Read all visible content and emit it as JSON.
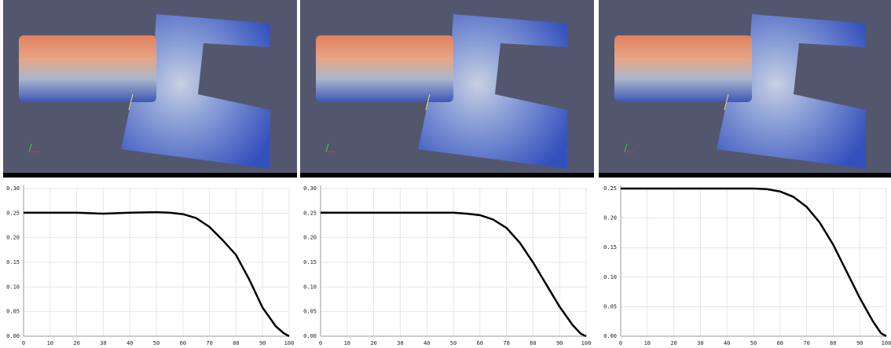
{
  "chart_data": [
    {
      "type": "line",
      "xlim": [
        0,
        100
      ],
      "xticks": [
        0,
        10,
        20,
        30,
        40,
        50,
        60,
        70,
        80,
        90,
        100
      ],
      "ylim": [
        0,
        0.3
      ],
      "yticks": [
        {
          "value": 0,
          "label": "0.00"
        },
        0.05,
        {
          "value": 0.1,
          "label": "0.10"
        },
        0.15,
        {
          "value": 0.2,
          "label": "0.20"
        },
        0.25,
        {
          "value": 0.3,
          "label": "0.30"
        }
      ],
      "grid": true,
      "x": [
        0,
        10,
        20,
        30,
        40,
        50,
        55,
        60,
        65,
        70,
        75,
        80,
        85,
        90,
        95,
        98,
        100
      ],
      "series": [
        {
          "color": "#000000",
          "values": [
            0.251,
            0.251,
            0.251,
            0.249,
            0.251,
            0.252,
            0.251,
            0.248,
            0.24,
            0.222,
            0.195,
            0.165,
            0.115,
            0.058,
            0.02,
            0.006,
            0
          ]
        }
      ]
    },
    {
      "type": "line",
      "xlim": [
        0,
        100
      ],
      "xticks": [
        0,
        10,
        20,
        30,
        40,
        50,
        60,
        70,
        80,
        90,
        100
      ],
      "ylim": [
        0,
        0.3
      ],
      "yticks": [
        {
          "value": 0,
          "label": "0.00"
        },
        0.05,
        {
          "value": 0.1,
          "label": "0.10"
        },
        0.15,
        {
          "value": 0.2,
          "label": "0.20"
        },
        0.25,
        {
          "value": 0.3,
          "label": "0.30"
        }
      ],
      "grid": true,
      "x": [
        0,
        10,
        20,
        30,
        40,
        50,
        55,
        60,
        65,
        70,
        75,
        80,
        85,
        90,
        95,
        98,
        100
      ],
      "series": [
        {
          "color": "#000000",
          "values": [
            0.251,
            0.251,
            0.251,
            0.251,
            0.251,
            0.251,
            0.249,
            0.246,
            0.237,
            0.22,
            0.19,
            0.15,
            0.105,
            0.06,
            0.022,
            0.005,
            0
          ]
        }
      ]
    },
    {
      "type": "line",
      "xlim": [
        0,
        100
      ],
      "xticks": [
        0,
        10,
        20,
        30,
        40,
        50,
        60,
        70,
        80,
        90,
        100
      ],
      "ylim": [
        0,
        0.25
      ],
      "yticks": [
        {
          "value": 0,
          "label": "0.00"
        },
        0.05,
        {
          "value": 0.1,
          "label": "0.10"
        },
        0.15,
        {
          "value": 0.2,
          "label": "0.20"
        },
        0.25
      ],
      "grid": true,
      "x": [
        0,
        10,
        20,
        30,
        40,
        50,
        55,
        60,
        65,
        70,
        75,
        80,
        85,
        90,
        95,
        98,
        100
      ],
      "series": [
        {
          "color": "#000000",
          "values": [
            0.25,
            0.25,
            0.25,
            0.25,
            0.25,
            0.25,
            0.249,
            0.245,
            0.236,
            0.219,
            0.192,
            0.155,
            0.11,
            0.065,
            0.025,
            0.005,
            0
          ]
        }
      ]
    }
  ]
}
